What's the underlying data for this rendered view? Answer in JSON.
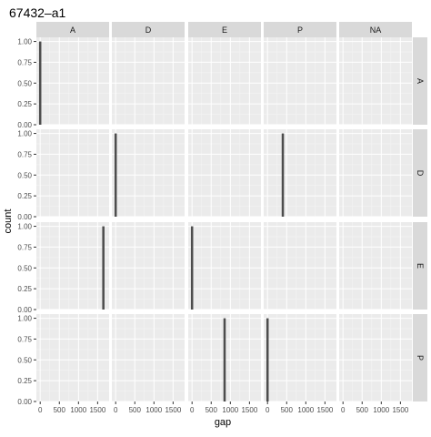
{
  "chart_data": {
    "type": "bar",
    "title": "67432–a1",
    "xlabel": "gap",
    "ylabel": "count",
    "col_facets": [
      "A",
      "D",
      "E",
      "P",
      "NA"
    ],
    "row_facets": [
      "A",
      "D",
      "E",
      "P"
    ],
    "xlim": [
      -100,
      1800
    ],
    "ylim": [
      0,
      1.05
    ],
    "x_ticks": [
      0,
      500,
      1000,
      1500
    ],
    "y_ticks": [
      0.0,
      0.25,
      0.5,
      0.75,
      1.0
    ],
    "y_tick_labels": [
      "0.00",
      "0.25",
      "0.50",
      "0.75",
      "1.00"
    ],
    "bar_width": 60,
    "bars": [
      {
        "row": "A",
        "col": "A",
        "x": 0,
        "count": 1
      },
      {
        "row": "D",
        "col": "D",
        "x": 0,
        "count": 1
      },
      {
        "row": "D",
        "col": "P",
        "x": 400,
        "count": 1
      },
      {
        "row": "E",
        "col": "A",
        "x": 1650,
        "count": 1
      },
      {
        "row": "E",
        "col": "E",
        "x": 0,
        "count": 1
      },
      {
        "row": "P",
        "col": "E",
        "x": 850,
        "count": 1
      },
      {
        "row": "P",
        "col": "P",
        "x": 0,
        "count": 1
      }
    ],
    "grid": true,
    "bar_color": "#4d4d4d",
    "panel_background": "#ebebeb",
    "strip_background": "#d9d9d9"
  }
}
